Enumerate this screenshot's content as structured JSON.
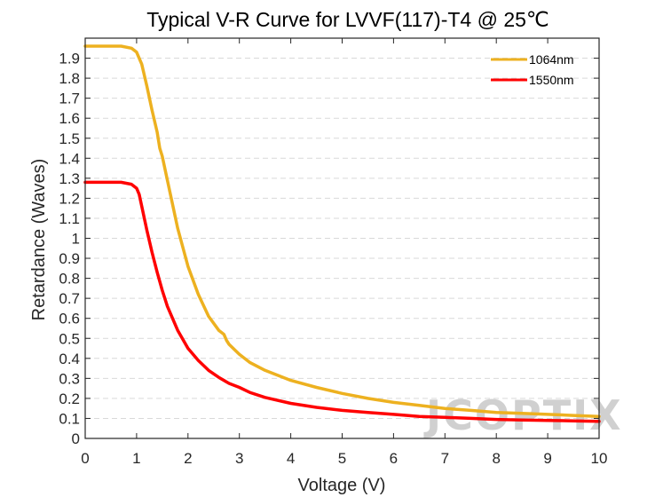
{
  "chart_data": {
    "type": "line",
    "title": "Typical V-R Curve for LVVF(117)-T4 @ 25℃",
    "xlabel": "Voltage (V)",
    "ylabel": "Retardance (Waves)",
    "xlim": [
      0,
      10
    ],
    "ylim": [
      0,
      2
    ],
    "x_ticks": [
      "0",
      "1",
      "2",
      "3",
      "4",
      "5",
      "6",
      "7",
      "8",
      "9",
      "10"
    ],
    "y_ticks": [
      "0",
      "0.1",
      "0.2",
      "0.3",
      "0.4",
      "0.5",
      "0.6",
      "0.7",
      "0.8",
      "0.9",
      "1",
      "1.1",
      "1.2",
      "1.3",
      "1.4",
      "1.5",
      "1.6",
      "1.7",
      "1.8",
      "1.9"
    ],
    "grid": "horizontal dashed",
    "legend_position": "top-right",
    "series": [
      {
        "name": "1064nm",
        "color": "#EDB120",
        "x": [
          0,
          0.4,
          0.7,
          0.9,
          1.0,
          1.1,
          1.2,
          1.3,
          1.4,
          1.45,
          1.5,
          1.6,
          1.8,
          2.0,
          2.2,
          2.4,
          2.6,
          2.7,
          2.75,
          2.8,
          3.0,
          3.2,
          3.5,
          4.0,
          4.5,
          5.0,
          5.5,
          6.0,
          6.5,
          7.0,
          7.5,
          8.0,
          8.5,
          9.0,
          9.5,
          10.0
        ],
        "y": [
          1.96,
          1.96,
          1.96,
          1.95,
          1.93,
          1.87,
          1.76,
          1.64,
          1.53,
          1.45,
          1.41,
          1.29,
          1.05,
          0.86,
          0.72,
          0.61,
          0.54,
          0.52,
          0.49,
          0.47,
          0.42,
          0.38,
          0.34,
          0.29,
          0.255,
          0.225,
          0.2,
          0.18,
          0.165,
          0.15,
          0.14,
          0.13,
          0.125,
          0.12,
          0.115,
          0.11
        ]
      },
      {
        "name": "1550nm",
        "color": "#FF0000",
        "x": [
          0,
          0.4,
          0.7,
          0.9,
          1.0,
          1.05,
          1.1,
          1.2,
          1.3,
          1.4,
          1.5,
          1.6,
          1.8,
          2.0,
          2.2,
          2.4,
          2.6,
          2.8,
          3.0,
          3.2,
          3.5,
          4.0,
          4.5,
          5.0,
          5.5,
          6.0,
          6.5,
          7.0,
          7.5,
          8.0,
          8.5,
          9.0,
          9.5,
          10.0
        ],
        "y": [
          1.28,
          1.28,
          1.28,
          1.27,
          1.25,
          1.22,
          1.16,
          1.04,
          0.93,
          0.83,
          0.74,
          0.66,
          0.54,
          0.45,
          0.39,
          0.34,
          0.305,
          0.275,
          0.255,
          0.23,
          0.205,
          0.175,
          0.155,
          0.14,
          0.13,
          0.12,
          0.11,
          0.105,
          0.1,
          0.095,
          0.092,
          0.09,
          0.088,
          0.085
        ]
      }
    ]
  },
  "watermark": "JCOPTIX"
}
